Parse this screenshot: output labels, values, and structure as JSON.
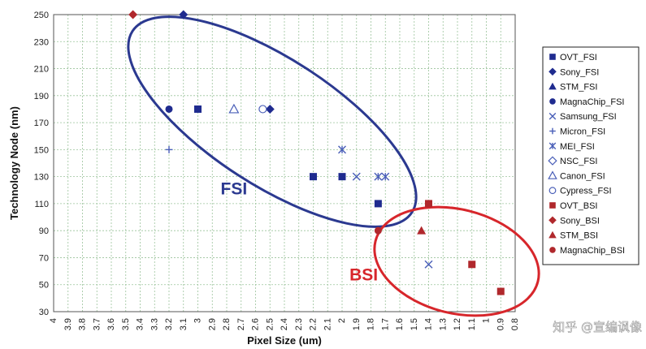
{
  "chart_data": {
    "type": "scatter",
    "title": "",
    "xlabel": "Pixel Size (um)",
    "ylabel": "Technology Node (nm)",
    "x_reversed": true,
    "xlim": [
      4.0,
      0.8
    ],
    "ylim": [
      30,
      250
    ],
    "x_ticks": [
      "4",
      "3.9",
      "3.8",
      "3.7",
      "3.6",
      "3.5",
      "3.4",
      "3.3",
      "3.2",
      "3.1",
      "3",
      "2.9",
      "2.8",
      "2.7",
      "2.6",
      "2.5",
      "2.4",
      "2.3",
      "2.2",
      "2.1",
      "2",
      "1.9",
      "1.8",
      "1.7",
      "1.6",
      "1.5",
      "1.4",
      "1.3",
      "1.2",
      "1.1",
      "1",
      "0.9",
      "0.8"
    ],
    "y_ticks": [
      "30",
      "50",
      "70",
      "90",
      "110",
      "130",
      "150",
      "170",
      "190",
      "210",
      "230",
      "250"
    ],
    "grid": true,
    "legend_position": "right",
    "series": [
      {
        "name": "OVT_FSI",
        "marker": "square",
        "color": "#1f2b8f",
        "points": [
          [
            3.0,
            180
          ],
          [
            2.2,
            130
          ],
          [
            2.0,
            130
          ],
          [
            1.75,
            110
          ]
        ]
      },
      {
        "name": "Sony_FSI",
        "marker": "diamond",
        "color": "#1f2b8f",
        "points": [
          [
            3.1,
            250
          ],
          [
            2.5,
            180
          ]
        ]
      },
      {
        "name": "STM_FSI",
        "marker": "triangle",
        "color": "#1f2b8f",
        "points": []
      },
      {
        "name": "MagnaChip_FSI",
        "marker": "circle",
        "color": "#1f2b8f",
        "points": [
          [
            3.2,
            180
          ]
        ]
      },
      {
        "name": "Samsung_FSI",
        "marker": "x",
        "color": "#4a5fb8",
        "points": [
          [
            1.9,
            130
          ],
          [
            1.4,
            65
          ]
        ]
      },
      {
        "name": "Micron_FSI",
        "marker": "plus",
        "color": "#4a5fb8",
        "points": [
          [
            3.2,
            150
          ]
        ]
      },
      {
        "name": "MEI_FSI",
        "marker": "star",
        "color": "#4a5fb8",
        "points": [
          [
            2.0,
            150
          ],
          [
            1.75,
            130
          ],
          [
            1.7,
            130
          ]
        ]
      },
      {
        "name": "NSC_FSI",
        "marker": "diamond-open",
        "color": "#4a5fb8",
        "points": []
      },
      {
        "name": "Canon_FSI",
        "marker": "triangle-open",
        "color": "#4a5fb8",
        "points": [
          [
            2.75,
            180
          ]
        ]
      },
      {
        "name": "Cypress_FSI",
        "marker": "circle-open",
        "color": "#4a5fb8",
        "points": [
          [
            2.55,
            180
          ]
        ]
      },
      {
        "name": "OVT_BSI",
        "marker": "square",
        "color": "#b0282c",
        "points": [
          [
            1.4,
            110
          ],
          [
            1.1,
            65
          ],
          [
            0.9,
            45
          ]
        ]
      },
      {
        "name": "Sony_BSI",
        "marker": "diamond",
        "color": "#b0282c",
        "points": [
          [
            3.45,
            250
          ]
        ]
      },
      {
        "name": "STM_BSI",
        "marker": "triangle",
        "color": "#b0282c",
        "points": [
          [
            1.45,
            90
          ]
        ]
      },
      {
        "name": "MagnaChip_BSI",
        "marker": "circle",
        "color": "#b0282c",
        "points": [
          [
            1.75,
            90
          ]
        ]
      }
    ],
    "regions": [
      {
        "name": "FSI",
        "color": "#2b3990",
        "label_x": 2.75,
        "label_y": 117
      },
      {
        "name": "BSI",
        "color": "#d7262b",
        "label_x": 1.85,
        "label_y": 53
      }
    ]
  },
  "watermark": "知乎 @宣编讽像"
}
